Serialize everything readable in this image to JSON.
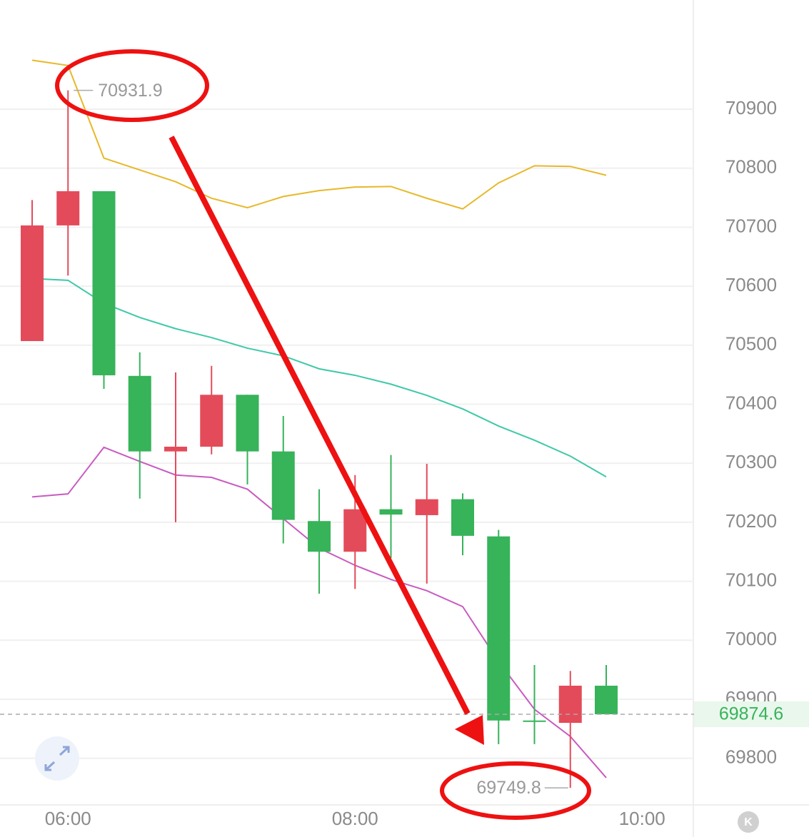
{
  "chart_data": {
    "type": "candlestick",
    "categories": [
      null,
      "06:00",
      null,
      null,
      null,
      null,
      null,
      null,
      null,
      "08:00",
      null,
      null,
      null,
      null,
      null,
      null,
      null,
      "10:00"
    ],
    "open": [
      70507,
      70703,
      70761,
      70448,
      70320,
      70328,
      70416,
      70320,
      70202,
      70150,
      70222,
      70212,
      70239,
      70176,
      69864,
      69860,
      69923,
      null
    ],
    "high": [
      70746,
      70931.9,
      70761,
      70488,
      70454,
      70465,
      70416,
      70380,
      70256,
      70280,
      70314,
      70299,
      70249,
      70187,
      69958,
      69948,
      69958,
      null
    ],
    "low": [
      70507,
      70618,
      70426,
      70240,
      70200,
      70315,
      70264,
      70164,
      70079,
      70087,
      70139,
      70096,
      70144,
      69824,
      69824,
      69749.8,
      69874.6,
      null
    ],
    "close": [
      70703,
      70761,
      70449,
      70320,
      70328,
      70416,
      70320,
      70204,
      70150,
      70222,
      70213,
      70239,
      70177,
      69864,
      69862,
      69923,
      69874.6,
      null
    ],
    "up_color": "#e44b5a",
    "down_color": "#37b35a",
    "lines": [
      {
        "color": "#e8b82a",
        "values": [
          70983,
          70974,
          70817,
          70797,
          70777,
          70749,
          70733,
          70752,
          70762,
          70768,
          70769,
          70749,
          70731,
          70775,
          70804,
          70803,
          70788,
          null
        ]
      },
      {
        "color": "#3ec9a7",
        "values": [
          70613,
          70610,
          70571,
          70547,
          70528,
          70513,
          70495,
          70482,
          70460,
          70449,
          70434,
          70415,
          70392,
          70363,
          70339,
          70312,
          70277,
          null
        ]
      },
      {
        "color": "#c95bc0",
        "values": [
          70243,
          70248,
          70327,
          70303,
          70280,
          70276,
          70256,
          70206,
          70156,
          70127,
          70103,
          70084,
          70057,
          69964,
          69883,
          69837,
          69767,
          null
        ]
      }
    ],
    "ylim": [
      69721,
      71085
    ],
    "yticks": [
      69800,
      69900,
      70000,
      70100,
      70200,
      70300,
      70400,
      70500,
      70600,
      70700,
      70800,
      70900
    ],
    "grid": true
  },
  "toolbar": {
    "k_button": "K"
  }
}
